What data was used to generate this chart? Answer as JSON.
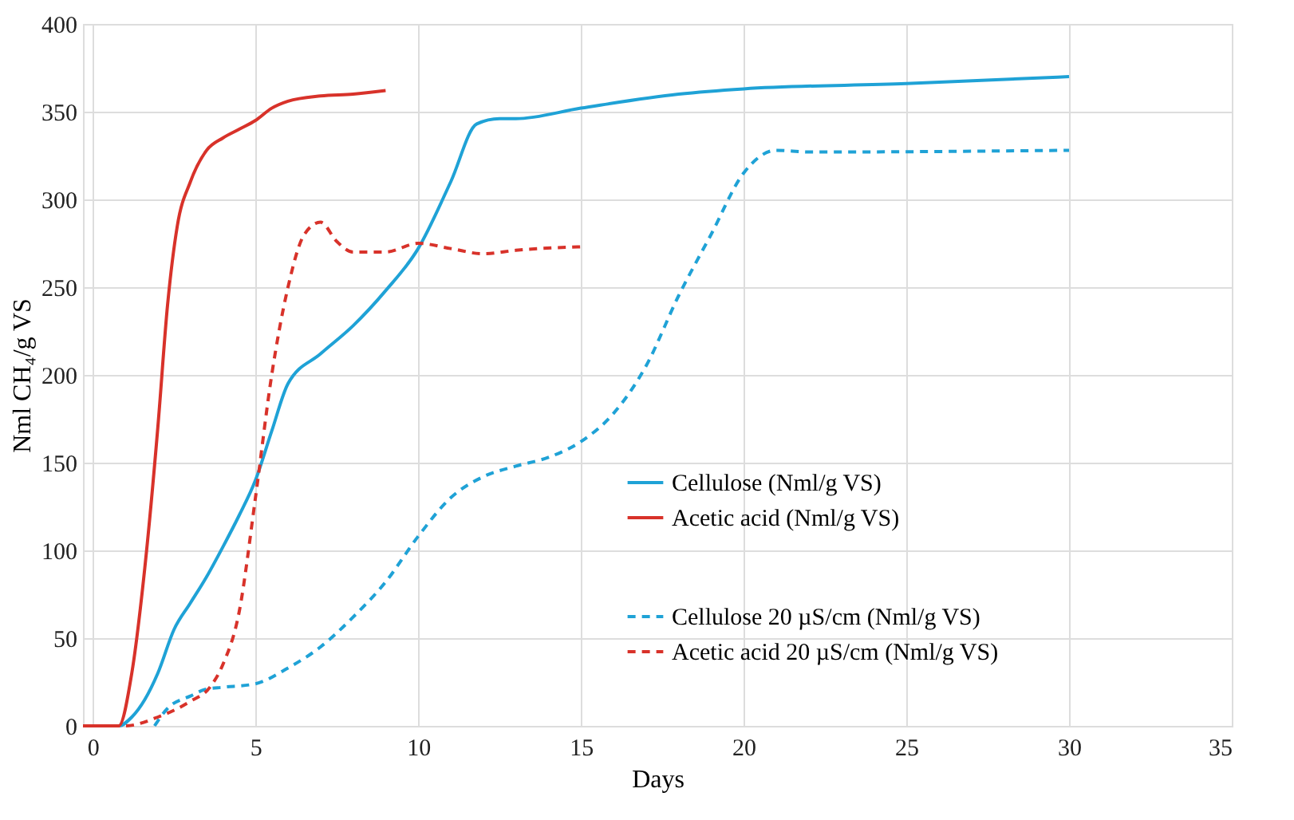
{
  "chart_data": {
    "type": "line",
    "xlabel": "Days",
    "ylabel": "Nml CH₄/g VS",
    "xlim": [
      -0.3,
      35
    ],
    "ylim": [
      0,
      400
    ],
    "xticks": [
      0,
      5,
      10,
      15,
      20,
      25,
      30,
      35
    ],
    "yticks": [
      0,
      50,
      100,
      150,
      200,
      250,
      300,
      350,
      400
    ],
    "grid": true,
    "legend": "bottom right",
    "marker": "none",
    "series": [
      {
        "name": "Cellulose (Nml/g VS)",
        "color": "#1fa2d6",
        "line_style": "solid",
        "x": [
          0,
          0.8,
          1.2,
          1.6,
          2,
          2.5,
          3,
          3.5,
          4,
          4.5,
          5,
          5.5,
          6,
          7,
          8,
          9,
          10,
          11,
          11.8,
          12.5,
          13,
          15,
          18,
          20,
          25,
          30
        ],
        "values": [
          0,
          0,
          5,
          15,
          30,
          55,
          70,
          85,
          102,
          120,
          140,
          168,
          195,
          212,
          228,
          248,
          272,
          310,
          343,
          346,
          346,
          352,
          360,
          363,
          366,
          370
        ]
      },
      {
        "name": "Acetic acid (Nml/g VS)",
        "color": "#d8322a",
        "line_style": "solid",
        "x": [
          -0.3,
          0.5,
          0.8,
          1.2,
          1.6,
          2.0,
          2.3,
          2.6,
          3.0,
          3.5,
          4.0,
          4.5,
          5,
          5.5,
          6,
          7,
          8,
          9
        ],
        "values": [
          0,
          0,
          0,
          30,
          90,
          170,
          240,
          285,
          310,
          328,
          335,
          340,
          345,
          352,
          356,
          359,
          360,
          362
        ]
      },
      {
        "name": "Cellulose 20 µS/cm (Nml/g VS)",
        "color": "#1fa2d6",
        "line_style": "dashed",
        "x": [
          1.9,
          2.3,
          3,
          3.5,
          4,
          5,
          6,
          7,
          8,
          9,
          10,
          11,
          12,
          13,
          14,
          15,
          16,
          17,
          18,
          19,
          20,
          21,
          22,
          30
        ],
        "values": [
          0,
          10,
          17,
          21,
          22,
          24,
          33,
          45,
          62,
          82,
          108,
          130,
          142,
          148,
          153,
          162,
          178,
          205,
          245,
          280,
          315,
          328,
          327,
          328
        ]
      },
      {
        "name": "Acetic acid 20 µS/cm (Nml/g VS)",
        "color": "#d8322a",
        "line_style": "dashed",
        "x": [
          -0.3,
          1,
          2,
          3,
          3.6,
          4,
          4.5,
          5,
          5.5,
          6,
          6.5,
          7,
          7.5,
          8,
          9,
          10,
          11,
          12,
          13,
          15
        ],
        "values": [
          0,
          0,
          5,
          14,
          22,
          35,
          65,
          130,
          200,
          250,
          280,
          287,
          276,
          270,
          270,
          275,
          272,
          269,
          271,
          273
        ]
      }
    ]
  }
}
